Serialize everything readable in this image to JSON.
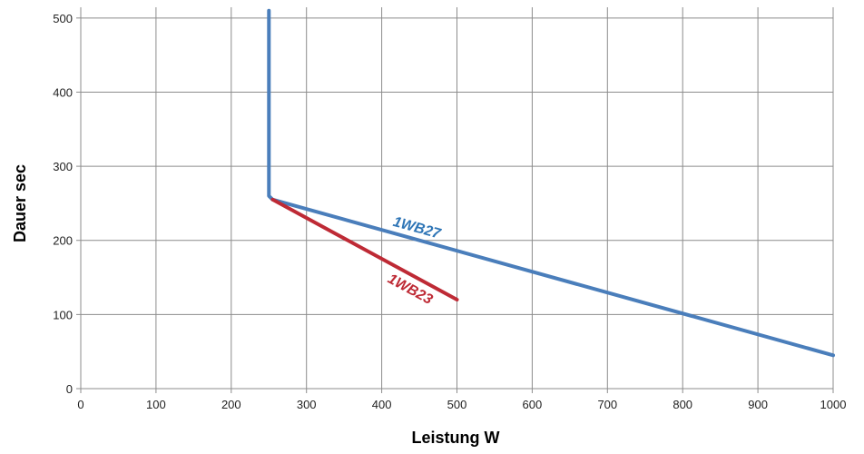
{
  "chart_data": {
    "type": "line",
    "xlabel": "Leistung W",
    "ylabel": "Dauer sec",
    "xlim": [
      0,
      1000
    ],
    "ylim": [
      0,
      500
    ],
    "x_ticks": [
      0,
      100,
      200,
      300,
      400,
      500,
      600,
      700,
      800,
      900,
      1000
    ],
    "y_ticks": [
      0,
      100,
      200,
      300,
      400,
      500
    ],
    "grid": true,
    "series": [
      {
        "name": "1WB27",
        "color": "#4a7ebb",
        "label_color": "#2e75b6",
        "x": [
          250,
          250,
          255,
          1000
        ],
        "y": [
          510,
          260,
          255,
          45
        ]
      },
      {
        "name": "1WB23",
        "color": "#be2a35",
        "label_color": "#be2a35",
        "x": [
          255,
          500
        ],
        "y": [
          255,
          120
        ]
      }
    ]
  }
}
